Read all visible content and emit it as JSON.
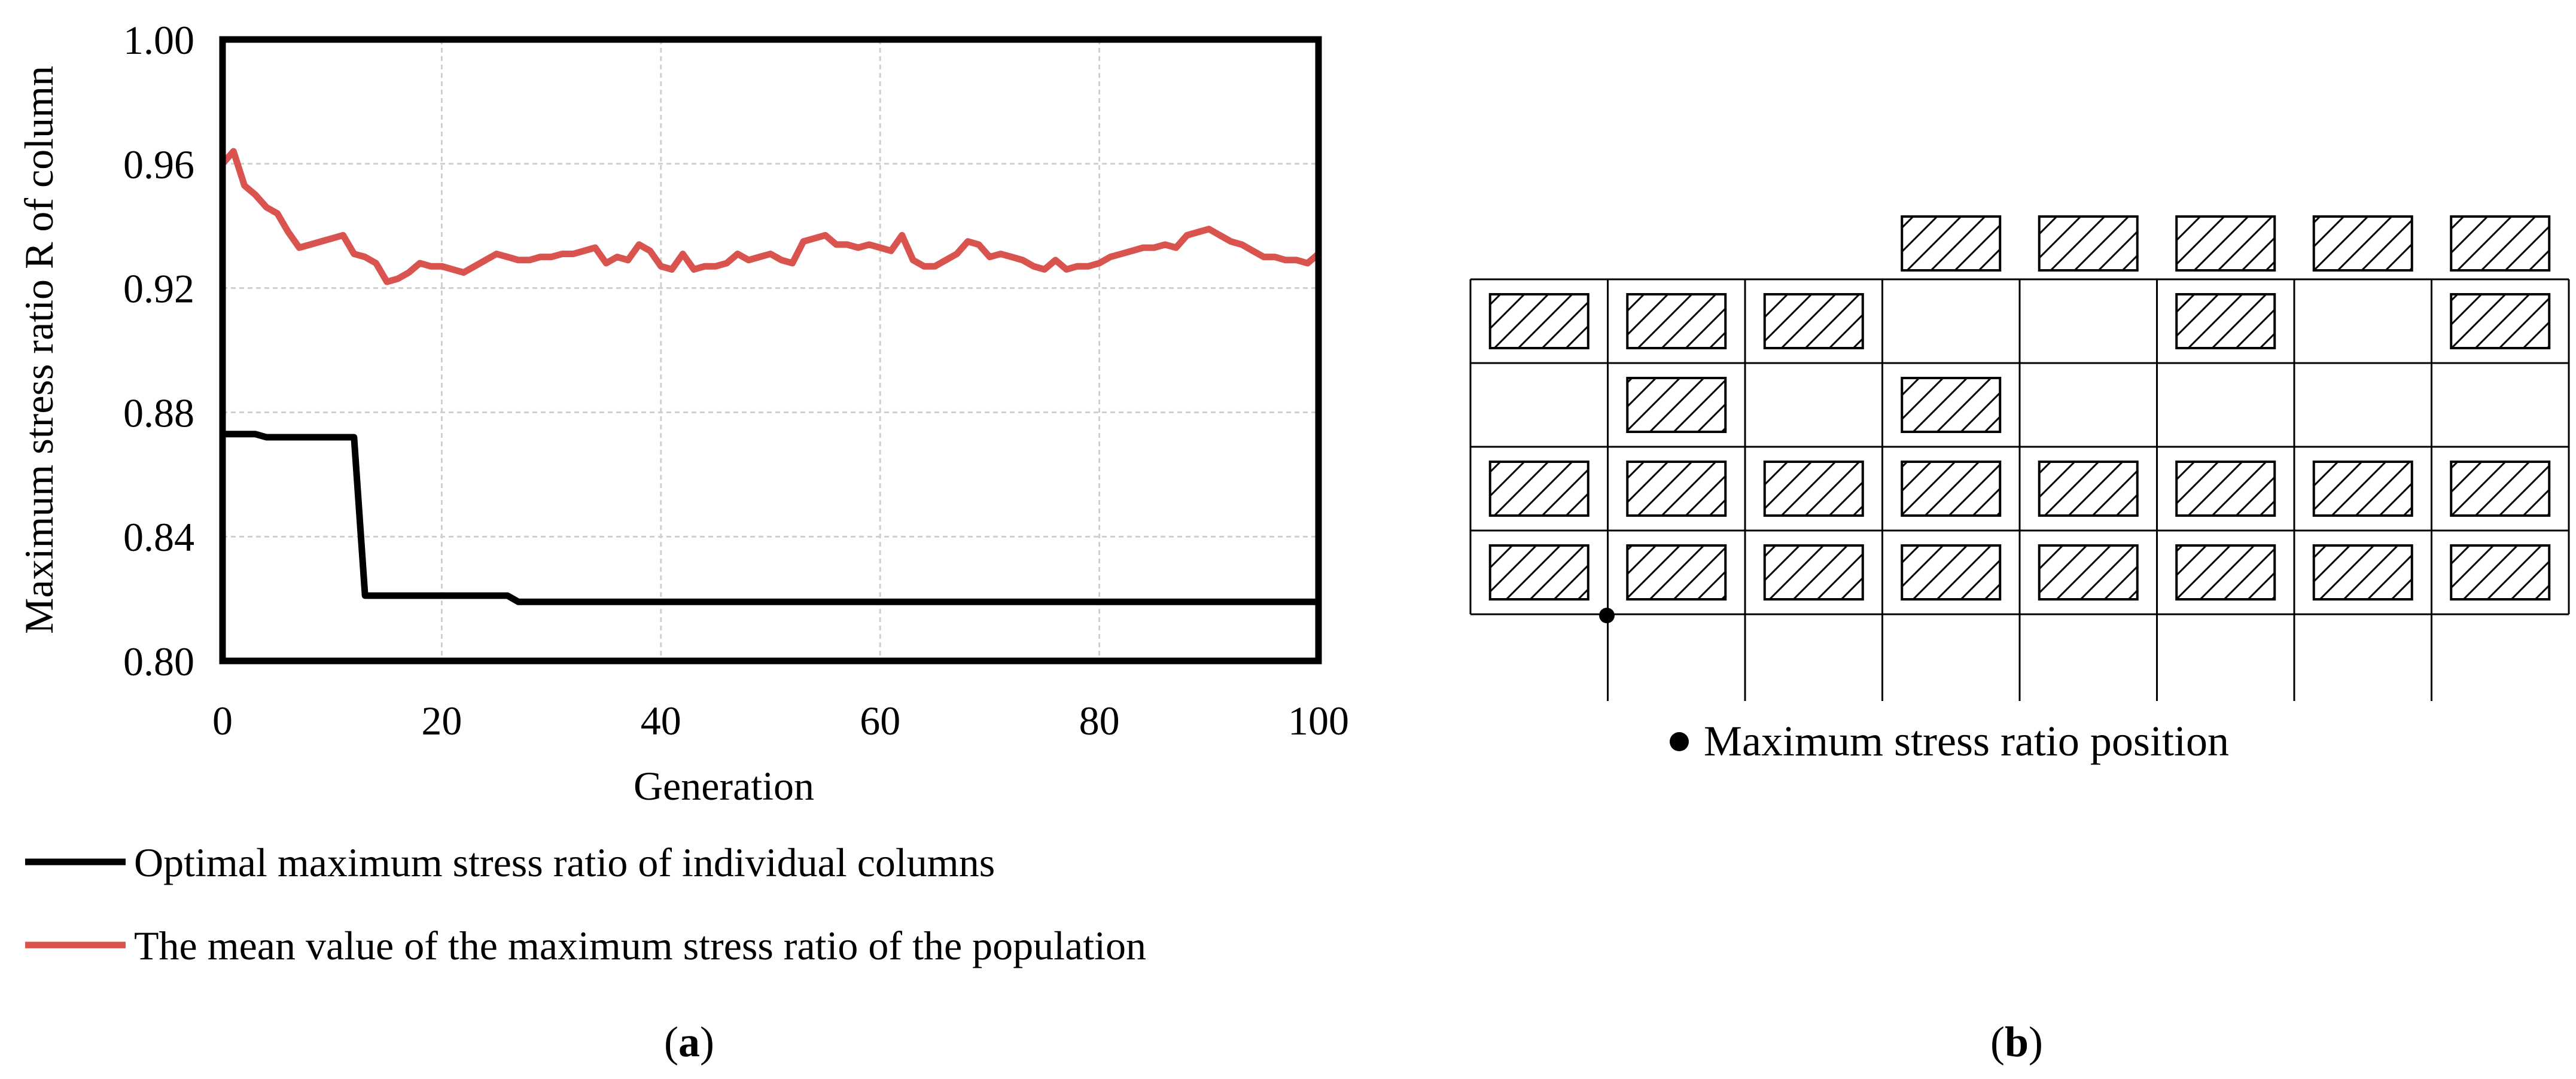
{
  "panel_a": {
    "caption_open": "(",
    "caption_letter": "a",
    "caption_close": ")",
    "legend": [
      {
        "label": "Optimal maximum stress ratio of individual columns",
        "color": "#000000"
      },
      {
        "label": "The mean value of the maximum stress ratio of the population",
        "color": "#d9534f"
      }
    ]
  },
  "panel_b": {
    "caption_open": "(",
    "caption_letter": "b",
    "caption_close": ")",
    "marker_label": "Maximum stress ratio position",
    "grid_columns": 8,
    "top_row_hatched": [
      false,
      false,
      false,
      true,
      true,
      true,
      true,
      true
    ],
    "rows": [
      [
        true,
        true,
        true,
        false,
        false,
        true,
        false,
        true
      ],
      [
        false,
        true,
        false,
        true,
        false,
        false,
        false,
        false
      ],
      [
        true,
        true,
        true,
        true,
        true,
        true,
        true,
        true
      ],
      [
        true,
        true,
        true,
        true,
        true,
        true,
        true,
        true
      ]
    ],
    "marker_position": {
      "column_line": 1,
      "row_line": 4
    }
  },
  "chart_data": {
    "type": "line",
    "title": "",
    "xlabel": "Generation",
    "ylabel": "Maximum stress ratio R of column",
    "xlim": [
      0,
      100
    ],
    "ylim": [
      0.8,
      1.0
    ],
    "xticks": [
      "0",
      "20",
      "40",
      "60",
      "80",
      "100"
    ],
    "yticks": [
      "0.80",
      "0.84",
      "0.88",
      "0.92",
      "0.96",
      "1.00"
    ],
    "grid": true,
    "legend_position": "bottom",
    "series": [
      {
        "name": "Optimal maximum stress ratio of individual columns",
        "color": "#000000",
        "x": [
          0,
          3,
          4,
          12,
          13,
          26,
          27,
          100
        ],
        "y": [
          0.873,
          0.873,
          0.872,
          0.872,
          0.821,
          0.821,
          0.819,
          0.819
        ]
      },
      {
        "name": "The mean value of the maximum stress ratio of the population",
        "color": "#d9534f",
        "x": [
          0,
          1,
          2,
          3,
          4,
          5,
          6,
          7,
          8,
          9,
          10,
          11,
          12,
          13,
          14,
          15,
          16,
          17,
          18,
          19,
          20,
          21,
          22,
          23,
          24,
          25,
          26,
          27,
          28,
          29,
          30,
          31,
          32,
          33,
          34,
          35,
          36,
          37,
          38,
          39,
          40,
          41,
          42,
          43,
          44,
          45,
          46,
          47,
          48,
          49,
          50,
          51,
          52,
          53,
          54,
          55,
          56,
          57,
          58,
          59,
          60,
          61,
          62,
          63,
          64,
          65,
          66,
          67,
          68,
          69,
          70,
          71,
          72,
          73,
          74,
          75,
          76,
          77,
          78,
          79,
          80,
          81,
          82,
          83,
          84,
          85,
          86,
          87,
          88,
          89,
          90,
          91,
          92,
          93,
          94,
          95,
          96,
          97,
          98,
          99,
          100
        ],
        "y": [
          0.96,
          0.964,
          0.953,
          0.95,
          0.946,
          0.944,
          0.938,
          0.933,
          0.934,
          0.935,
          0.936,
          0.937,
          0.931,
          0.93,
          0.928,
          0.922,
          0.923,
          0.925,
          0.928,
          0.927,
          0.927,
          0.926,
          0.925,
          0.927,
          0.929,
          0.931,
          0.93,
          0.929,
          0.929,
          0.93,
          0.93,
          0.931,
          0.931,
          0.932,
          0.933,
          0.928,
          0.93,
          0.929,
          0.934,
          0.932,
          0.927,
          0.926,
          0.931,
          0.926,
          0.927,
          0.927,
          0.928,
          0.931,
          0.929,
          0.93,
          0.931,
          0.929,
          0.928,
          0.935,
          0.936,
          0.937,
          0.934,
          0.934,
          0.933,
          0.934,
          0.933,
          0.932,
          0.937,
          0.929,
          0.927,
          0.927,
          0.929,
          0.931,
          0.935,
          0.934,
          0.93,
          0.931,
          0.93,
          0.929,
          0.927,
          0.926,
          0.929,
          0.926,
          0.927,
          0.927,
          0.928,
          0.93,
          0.931,
          0.932,
          0.933,
          0.933,
          0.934,
          0.933,
          0.937,
          0.938,
          0.939,
          0.937,
          0.935,
          0.934,
          0.932,
          0.93,
          0.93,
          0.929,
          0.929,
          0.928,
          0.931
        ]
      }
    ]
  }
}
